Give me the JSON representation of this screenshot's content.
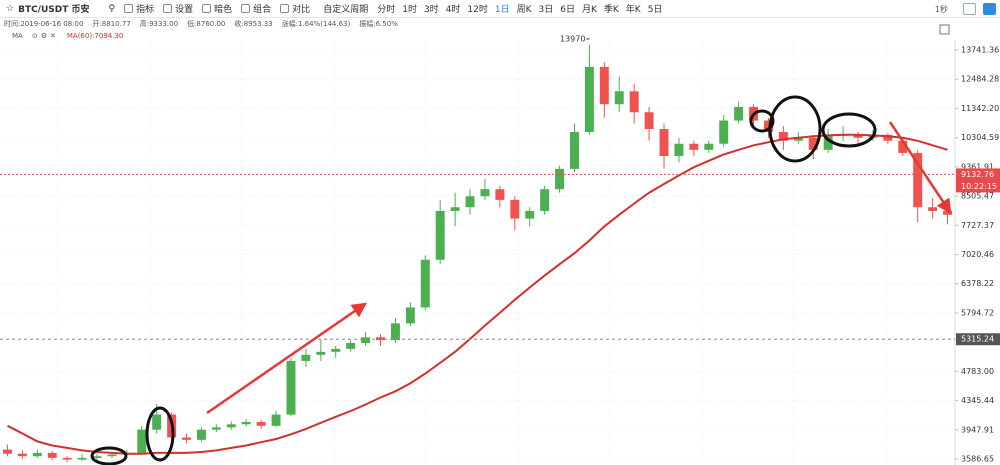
{
  "toolbar": {
    "symbol": "BTC/USDT 币安",
    "tools": [
      "指标",
      "设置",
      "暗色",
      "组合",
      "对比"
    ],
    "periods_label": "自定义周期",
    "periods": [
      "分时",
      "1时",
      "3时",
      "4时",
      "12时",
      "1日",
      "周K",
      "3日",
      "6日",
      "月K",
      "季K",
      "年K",
      "5日"
    ],
    "active_period": 5,
    "timer": "1秒"
  },
  "info": [
    "时间:2019-06-16 08:00",
    "开:8810.77",
    "高:9333.00",
    "低:8760.00",
    "收:8953.33",
    "涨幅:1.64%(144.63)",
    "振幅:6.50%"
  ],
  "indicator": {
    "name": "MA",
    "value_text": "MA(60):7094.30"
  },
  "chart_data": {
    "type": "candlestick",
    "log_scale": true,
    "up_color": "#4caf50",
    "down_color": "#ef5350",
    "open": [
      3700,
      3650,
      3620,
      3660,
      3600,
      3580,
      3600,
      3620,
      3640,
      3660,
      3950,
      4150,
      3850,
      3820,
      3950,
      3980,
      4020,
      4050,
      4000,
      4150,
      4950,
      5050,
      5100,
      5150,
      5250,
      5350,
      5300,
      5600,
      5900,
      6900,
      8100,
      8200,
      8500,
      8700,
      8400,
      7900,
      8100,
      8700,
      9300,
      10500,
      13000,
      11500,
      12000,
      11200,
      10600,
      9700,
      10100,
      9900,
      10100,
      10900,
      11400,
      10900,
      10500,
      10200,
      10300,
      9900,
      10400,
      10400,
      10300,
      10400,
      10200,
      9800,
      8200,
      8100
    ],
    "high": [
      3760,
      3690,
      3700,
      3680,
      3620,
      3640,
      3650,
      3670,
      3700,
      4000,
      4300,
      4180,
      3900,
      3980,
      4020,
      4060,
      4090,
      4080,
      4200,
      5000,
      5150,
      5300,
      5200,
      5300,
      5450,
      5400,
      5700,
      6000,
      7000,
      8400,
      8600,
      8700,
      9000,
      8800,
      8500,
      8200,
      8800,
      9400,
      10800,
      13970,
      13200,
      12600,
      12300,
      11400,
      10800,
      10300,
      10200,
      10200,
      11100,
      11600,
      11500,
      11000,
      10700,
      10500,
      10400,
      10600,
      10700,
      10500,
      10550,
      10450,
      10300,
      9900,
      8450,
      8300
    ],
    "low": [
      3620,
      3590,
      3600,
      3570,
      3550,
      3560,
      3580,
      3600,
      3620,
      3640,
      3900,
      3800,
      3780,
      3800,
      3920,
      3950,
      3990,
      3960,
      3980,
      4130,
      4850,
      4950,
      5000,
      5100,
      5200,
      5200,
      5250,
      5550,
      5850,
      6800,
      7700,
      8000,
      8400,
      8200,
      7600,
      7700,
      8000,
      8600,
      9200,
      10400,
      11000,
      11200,
      10800,
      10200,
      9300,
      9500,
      9700,
      9800,
      10000,
      10800,
      10700,
      10300,
      9900,
      10100,
      9600,
      9800,
      10200,
      10100,
      10200,
      10100,
      9700,
      7800,
      7900,
      7750
    ],
    "close": [
      3650,
      3620,
      3660,
      3600,
      3580,
      3600,
      3620,
      3640,
      3660,
      3950,
      4150,
      3850,
      3820,
      3950,
      3980,
      4020,
      4050,
      4000,
      4150,
      4950,
      5050,
      5100,
      5150,
      5250,
      5350,
      5300,
      5600,
      5900,
      6900,
      8100,
      8200,
      8500,
      8700,
      8400,
      7900,
      8100,
      8700,
      9300,
      10500,
      13000,
      11500,
      12000,
      11200,
      10600,
      9700,
      10100,
      9900,
      10100,
      10900,
      11400,
      10900,
      10500,
      10200,
      10300,
      9900,
      10400,
      10400,
      10300,
      10400,
      10200,
      9800,
      8200,
      8100,
      8000
    ],
    "series": [
      {
        "name": "MA(60)",
        "color": "#d32f2f",
        "values": [
          4000,
          3900,
          3800,
          3750,
          3720,
          3690,
          3670,
          3660,
          3650,
          3650,
          3660,
          3660,
          3660,
          3670,
          3690,
          3720,
          3750,
          3790,
          3830,
          3890,
          3960,
          4040,
          4120,
          4200,
          4290,
          4390,
          4480,
          4600,
          4750,
          4920,
          5100,
          5320,
          5560,
          5800,
          6050,
          6300,
          6550,
          6800,
          7050,
          7350,
          7700,
          8000,
          8300,
          8600,
          8850,
          9100,
          9350,
          9550,
          9750,
          9900,
          10050,
          10150,
          10250,
          10300,
          10350,
          10380,
          10400,
          10400,
          10380,
          10350,
          10300,
          10200,
          10050,
          9900
        ]
      }
    ],
    "ylim": [
      3517,
      14200
    ],
    "yticks": [
      13741.36,
      12484.28,
      {
        "value": 11342.2,
        "label": "11342.20"
      },
      10304.59,
      9361.91,
      8505.47,
      7727.37,
      7020.46,
      6378.22,
      5794.72,
      {
        "value": 4783,
        "label": "4783.00"
      },
      4345.44,
      3947.91,
      3586.65
    ],
    "grid": true,
    "price_line": {
      "value": 9132.76,
      "countdown": "10:22:15",
      "color": "#e84a4a"
    },
    "crosshair": {
      "value": 5315.24,
      "color": "#555"
    }
  }
}
